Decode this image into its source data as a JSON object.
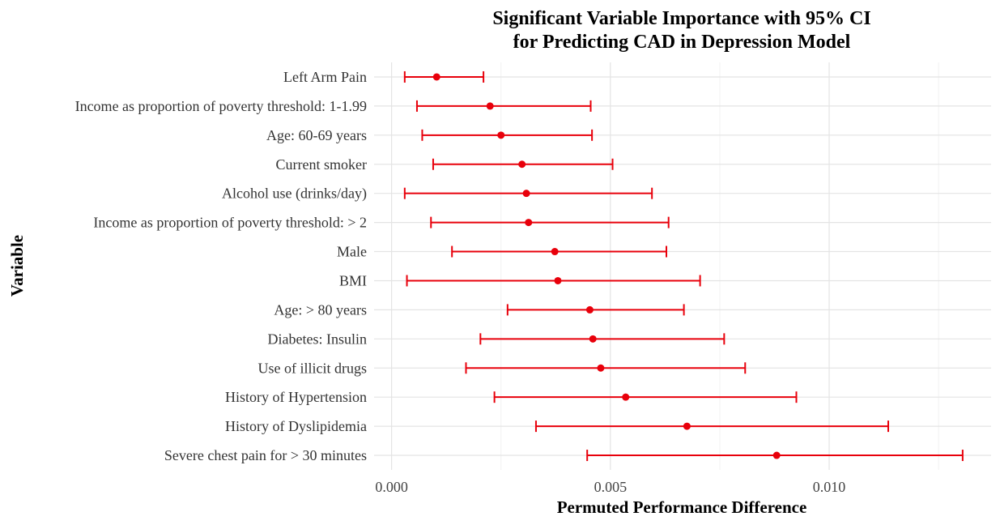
{
  "chart_data": {
    "type": "scatter",
    "title_line1": "Significant Variable Importance with 95% CI",
    "title_line2": "for Predicting CAD in Depression Model",
    "xlabel": "Permuted Performance Difference",
    "ylabel": "Variable",
    "xlim": [
      -0.0004,
      0.0137
    ],
    "x_ticks": [
      0.0,
      0.005,
      0.01
    ],
    "x_tick_labels": [
      "0.000",
      "0.005",
      "0.010"
    ],
    "grid": true,
    "point_color": "#e8000b",
    "error_bar": "95% CI",
    "categories": [
      "Left Arm Pain",
      "Income as proportion of poverty threshold: 1-1.99",
      "Age: 60-69 years",
      "Current smoker",
      "Alcohol use (drinks/day)",
      "Income as proportion of poverty threshold: > 2",
      "Male",
      "BMI",
      "Age: > 80 years",
      "Diabetes: Insulin",
      "Use of illicit drugs",
      "History of Hypertension",
      "History of Dyslipidemia",
      "Severe chest pain for > 30 minutes"
    ],
    "values": [
      0.00103,
      0.00225,
      0.0025,
      0.00298,
      0.00308,
      0.00313,
      0.00373,
      0.0038,
      0.00453,
      0.0046,
      0.00478,
      0.00535,
      0.00675,
      0.0088
    ],
    "ci_lower": [
      0.0003,
      0.00058,
      0.0007,
      0.00095,
      0.0003,
      0.0009,
      0.00138,
      0.00035,
      0.00265,
      0.00203,
      0.0017,
      0.00235,
      0.0033,
      0.00447
    ],
    "ci_upper": [
      0.0021,
      0.00455,
      0.00458,
      0.00505,
      0.00595,
      0.00633,
      0.00628,
      0.00705,
      0.00668,
      0.0076,
      0.00808,
      0.00925,
      0.01135,
      0.01305
    ]
  }
}
